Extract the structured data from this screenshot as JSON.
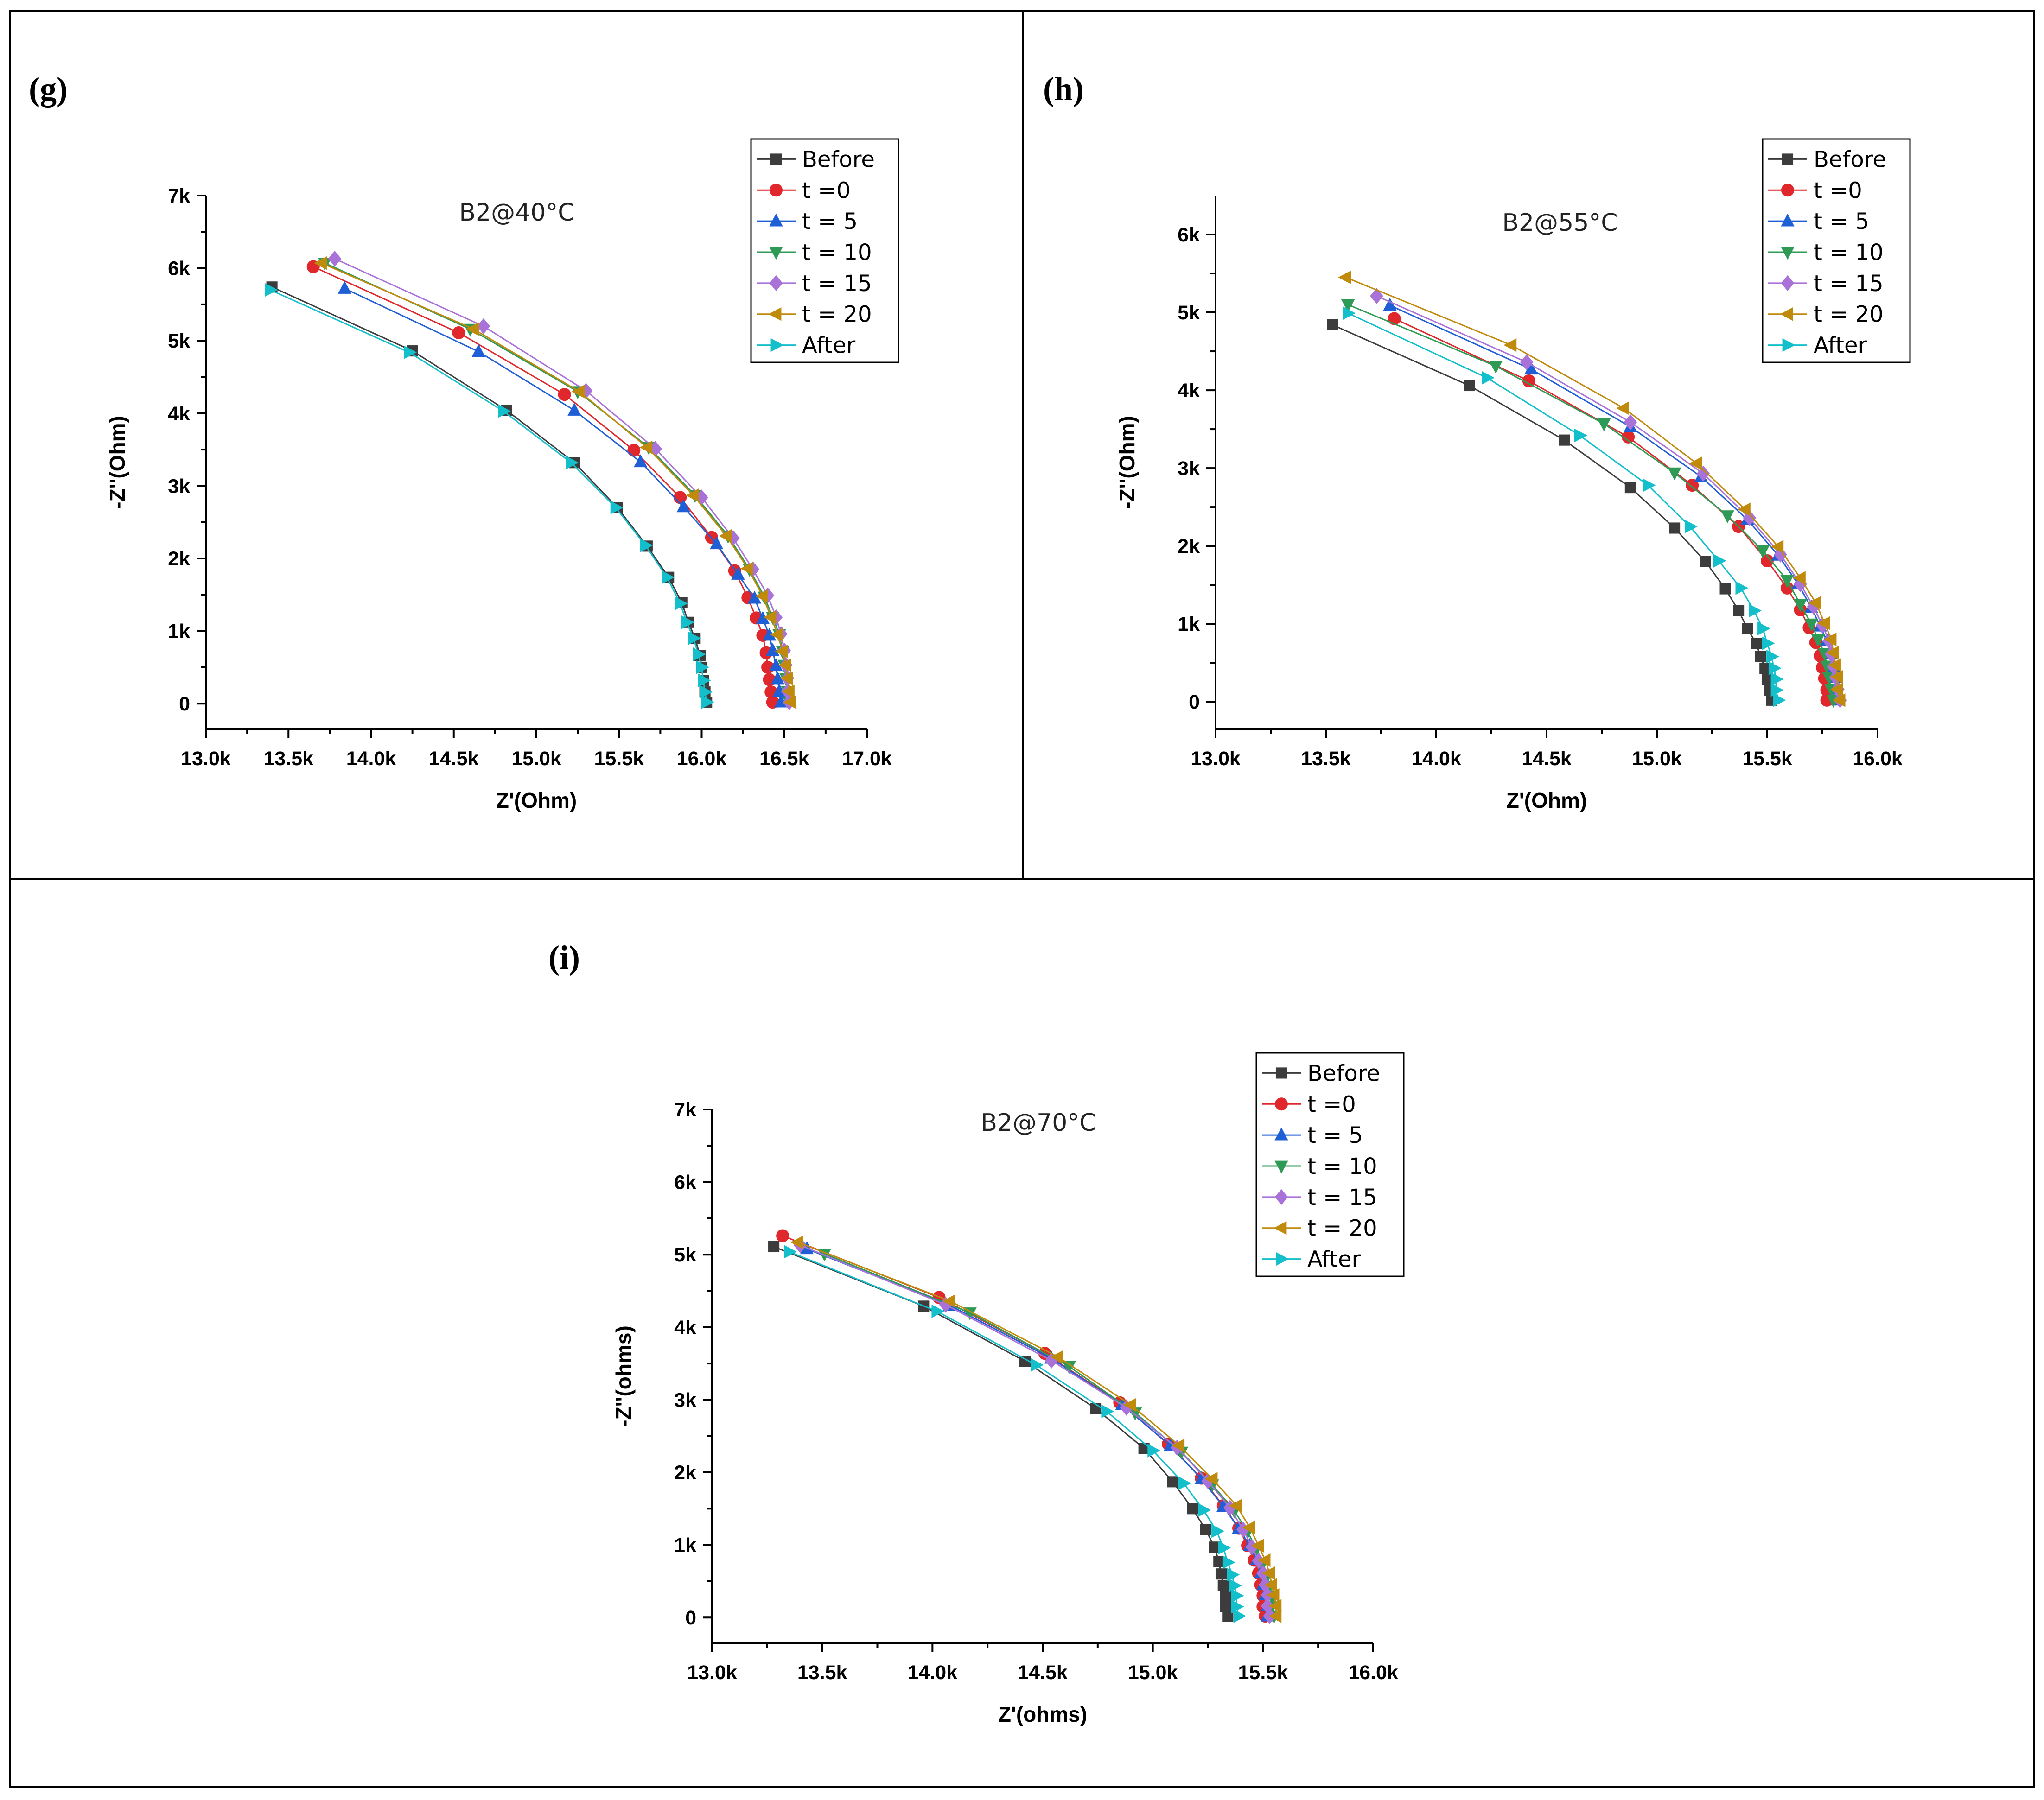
{
  "panels": [
    {
      "label": "(g)",
      "title": "B2@40°C"
    },
    {
      "label": "(h)",
      "title": "B2@55°C"
    },
    {
      "label": "(i)",
      "title": "B2@70°C"
    }
  ],
  "series_style": [
    {
      "name": "Before",
      "color": "#3c3c3c",
      "marker": "square"
    },
    {
      "name": "t =0",
      "color": "#e0282c",
      "marker": "circle"
    },
    {
      "name": "t = 5",
      "color": "#1f5fd6",
      "marker": "triangle-up"
    },
    {
      "name": "t = 10",
      "color": "#2e9a55",
      "marker": "triangle-down"
    },
    {
      "name": "t = 15",
      "color": "#a872d9",
      "marker": "diamond"
    },
    {
      "name": "t = 20",
      "color": "#c08a0c",
      "marker": "triangle-left"
    },
    {
      "name": "After",
      "color": "#14bfcc",
      "marker": "triangle-right"
    }
  ],
  "chart_data": [
    {
      "type": "scatter",
      "title": "B2@40°C",
      "xlabel": "Z'(Ohm)",
      "ylabel": "-Z''(Ohm)",
      "xlim": [
        13000,
        17000
      ],
      "ylim": [
        -350,
        7000
      ],
      "xticks": [
        13000,
        13500,
        14000,
        14500,
        15000,
        15500,
        16000,
        16500,
        17000
      ],
      "xtick_labels": [
        "13.0k",
        "13.5k",
        "14.0k",
        "14.5k",
        "15.0k",
        "15.5k",
        "16.0k",
        "16.5k",
        "17.0k"
      ],
      "yticks": [
        0,
        1000,
        2000,
        3000,
        4000,
        5000,
        6000,
        7000
      ],
      "ytick_labels": [
        "0",
        "1k",
        "2k",
        "3k",
        "4k",
        "5k",
        "6k",
        "7k"
      ],
      "legend": "top-right",
      "series": [
        {
          "name": "Before",
          "x": [
            13400,
            14250,
            14820,
            15230,
            15490,
            15670,
            15800,
            15880,
            15920,
            15960,
            15990,
            16000,
            16010,
            16020,
            16030
          ],
          "y": [
            5740,
            4860,
            4040,
            3320,
            2700,
            2170,
            1740,
            1390,
            1120,
            900,
            660,
            500,
            320,
            160,
            20
          ]
        },
        {
          "name": "t =0",
          "x": [
            13650,
            14530,
            15170,
            15590,
            15870,
            16060,
            16200,
            16280,
            16330,
            16370,
            16390,
            16400,
            16410,
            16420,
            16430
          ],
          "y": [
            6020,
            5110,
            4260,
            3490,
            2840,
            2290,
            1830,
            1460,
            1180,
            940,
            700,
            500,
            330,
            160,
            20
          ]
        },
        {
          "name": "t = 5",
          "x": [
            13840,
            14650,
            15230,
            15630,
            15890,
            16090,
            16220,
            16320,
            16370,
            16410,
            16430,
            16450,
            16460,
            16470,
            16480
          ],
          "y": [
            5720,
            4850,
            4040,
            3330,
            2710,
            2200,
            1780,
            1450,
            1170,
            940,
            730,
            520,
            340,
            170,
            20
          ]
        },
        {
          "name": "t = 10",
          "x": [
            13720,
            14600,
            15250,
            15680,
            15960,
            16160,
            16290,
            16380,
            16430,
            16470,
            16490,
            16500,
            16510,
            16520,
            16530
          ],
          "y": [
            6070,
            5160,
            4300,
            3530,
            2870,
            2310,
            1850,
            1470,
            1190,
            950,
            720,
            530,
            350,
            170,
            20
          ]
        },
        {
          "name": "t = 15",
          "x": [
            13780,
            14680,
            15300,
            15720,
            16000,
            16190,
            16310,
            16400,
            16450,
            16480,
            16500,
            16510,
            16520,
            16520,
            16530
          ],
          "y": [
            6130,
            5200,
            4310,
            3510,
            2840,
            2280,
            1850,
            1490,
            1190,
            960,
            730,
            530,
            350,
            170,
            20
          ]
        },
        {
          "name": "t = 20",
          "x": [
            13700,
            14620,
            15260,
            15670,
            15950,
            16150,
            16280,
            16370,
            16420,
            16460,
            16490,
            16510,
            16520,
            16530,
            16540
          ],
          "y": [
            6070,
            5160,
            4300,
            3530,
            2870,
            2310,
            1860,
            1480,
            1190,
            950,
            720,
            530,
            350,
            170,
            20
          ]
        },
        {
          "name": "After",
          "x": [
            13390,
            14230,
            14800,
            15210,
            15480,
            15660,
            15790,
            15870,
            15910,
            15950,
            15980,
            16000,
            16010,
            16020,
            16030
          ],
          "y": [
            5700,
            4840,
            4030,
            3320,
            2700,
            2180,
            1740,
            1380,
            1120,
            900,
            680,
            500,
            320,
            160,
            20
          ]
        }
      ]
    },
    {
      "type": "scatter",
      "title": "B2@55°C",
      "xlabel": "Z'(Ohm)",
      "ylabel": "-Z''(Ohm)",
      "xlim": [
        13000,
        16000
      ],
      "ylim": [
        -350,
        6500
      ],
      "xticks": [
        13000,
        13500,
        14000,
        14500,
        15000,
        15500,
        16000
      ],
      "xtick_labels": [
        "13.0k",
        "13.5k",
        "14.0k",
        "14.5k",
        "15.0k",
        "15.5k",
        "16.0k"
      ],
      "yticks": [
        0,
        1000,
        2000,
        3000,
        4000,
        5000,
        6000
      ],
      "ytick_labels": [
        "0",
        "1k",
        "2k",
        "3k",
        "4k",
        "5k",
        "6k"
      ],
      "legend": "top-right",
      "series": [
        {
          "name": "Before",
          "x": [
            13530,
            14150,
            14580,
            14880,
            15080,
            15220,
            15310,
            15370,
            15410,
            15450,
            15470,
            15490,
            15500,
            15510,
            15520
          ],
          "y": [
            4840,
            4060,
            3360,
            2750,
            2230,
            1800,
            1450,
            1170,
            940,
            750,
            580,
            430,
            290,
            150,
            20
          ]
        },
        {
          "name": "t =0",
          "x": [
            13810,
            14420,
            14870,
            15160,
            15370,
            15500,
            15590,
            15650,
            15690,
            15720,
            15740,
            15750,
            15760,
            15770,
            15770
          ],
          "y": [
            4920,
            4120,
            3400,
            2780,
            2250,
            1810,
            1460,
            1180,
            950,
            760,
            590,
            440,
            300,
            150,
            20
          ]
        },
        {
          "name": "t = 5",
          "x": [
            13790,
            14430,
            14880,
            15200,
            15410,
            15550,
            15640,
            15700,
            15740,
            15770,
            15790,
            15800,
            15810,
            15810,
            15820
          ],
          "y": [
            5090,
            4270,
            3530,
            2890,
            2340,
            1880,
            1510,
            1210,
            970,
            780,
            610,
            450,
            310,
            160,
            20
          ]
        },
        {
          "name": "t = 10",
          "x": [
            13600,
            14270,
            14760,
            15080,
            15320,
            15480,
            15590,
            15650,
            15700,
            15730,
            15760,
            15770,
            15780,
            15790,
            15800
          ],
          "y": [
            5100,
            4310,
            3570,
            2940,
            2390,
            1940,
            1560,
            1250,
            1000,
            800,
            620,
            460,
            310,
            160,
            20
          ]
        },
        {
          "name": "t = 15",
          "x": [
            13730,
            14410,
            14880,
            15210,
            15420,
            15560,
            15650,
            15710,
            15750,
            15780,
            15790,
            15800,
            15810,
            15820,
            15830
          ],
          "y": [
            5210,
            4360,
            3590,
            2930,
            2360,
            1890,
            1510,
            1220,
            980,
            780,
            610,
            450,
            310,
            160,
            20
          ]
        },
        {
          "name": "t = 20",
          "x": [
            13590,
            14340,
            14850,
            15180,
            15400,
            15550,
            15650,
            15720,
            15760,
            15790,
            15800,
            15810,
            15820,
            15820,
            15830
          ],
          "y": [
            5450,
            4580,
            3770,
            3060,
            2470,
            1990,
            1590,
            1270,
            1010,
            800,
            630,
            470,
            320,
            160,
            20
          ]
        },
        {
          "name": "After",
          "x": [
            13600,
            14230,
            14650,
            14960,
            15150,
            15280,
            15380,
            15440,
            15480,
            15500,
            15520,
            15530,
            15540,
            15540,
            15550
          ],
          "y": [
            4990,
            4160,
            3420,
            2780,
            2250,
            1810,
            1460,
            1170,
            940,
            750,
            580,
            430,
            290,
            150,
            20
          ]
        }
      ]
    },
    {
      "type": "scatter",
      "title": "B2@70°C",
      "xlabel": "Z'(ohms)",
      "ylabel": "-Z''(ohms)",
      "xlim": [
        13000,
        16000
      ],
      "ylim": [
        -350,
        7000
      ],
      "xticks": [
        13000,
        13500,
        14000,
        14500,
        15000,
        15500,
        16000
      ],
      "xtick_labels": [
        "13.0k",
        "13.5k",
        "14.0k",
        "14.5k",
        "15.0k",
        "15.5k",
        "16.0k"
      ],
      "yticks": [
        0,
        1000,
        2000,
        3000,
        4000,
        5000,
        6000,
        7000
      ],
      "ytick_labels": [
        "0",
        "1k",
        "2k",
        "3k",
        "4k",
        "5k",
        "6k",
        "7k"
      ],
      "legend": "top-right",
      "series": [
        {
          "name": "Before",
          "x": [
            13280,
            13960,
            14420,
            14740,
            14960,
            15090,
            15180,
            15240,
            15280,
            15300,
            15310,
            15320,
            15330,
            15330,
            15340
          ],
          "y": [
            5110,
            4290,
            3530,
            2880,
            2330,
            1870,
            1500,
            1210,
            970,
            770,
            600,
            440,
            300,
            150,
            20
          ]
        },
        {
          "name": "t =0",
          "x": [
            13320,
            14030,
            14510,
            14850,
            15070,
            15220,
            15320,
            15390,
            15430,
            15460,
            15480,
            15490,
            15500,
            15500,
            15510
          ],
          "y": [
            5260,
            4410,
            3640,
            2960,
            2390,
            1920,
            1540,
            1230,
            990,
            790,
            610,
            450,
            300,
            150,
            20
          ]
        },
        {
          "name": "t = 5",
          "x": [
            13430,
            14080,
            14540,
            14860,
            15080,
            15220,
            15320,
            15390,
            15440,
            15470,
            15490,
            15500,
            15510,
            15520,
            15520
          ],
          "y": [
            5080,
            4300,
            3570,
            2930,
            2370,
            1910,
            1530,
            1230,
            990,
            790,
            610,
            450,
            310,
            160,
            20
          ]
        },
        {
          "name": "t = 10",
          "x": [
            13510,
            14170,
            14620,
            14920,
            15130,
            15270,
            15370,
            15430,
            15470,
            15500,
            15520,
            15530,
            15540,
            15540,
            15550
          ],
          "y": [
            5010,
            4200,
            3460,
            2820,
            2280,
            1830,
            1470,
            1180,
            950,
            750,
            580,
            430,
            290,
            150,
            20
          ]
        },
        {
          "name": "t = 15",
          "x": [
            13400,
            14060,
            14540,
            14880,
            15110,
            15250,
            15350,
            15410,
            15450,
            15480,
            15500,
            15510,
            15520,
            15520,
            15530
          ],
          "y": [
            5130,
            4310,
            3540,
            2890,
            2340,
            1880,
            1510,
            1210,
            970,
            780,
            610,
            450,
            310,
            160,
            20
          ]
        },
        {
          "name": "t = 20",
          "x": [
            13390,
            14080,
            14570,
            14900,
            15120,
            15270,
            15380,
            15440,
            15480,
            15510,
            15530,
            15540,
            15550,
            15560,
            15560
          ],
          "y": [
            5170,
            4360,
            3590,
            2930,
            2370,
            1910,
            1540,
            1240,
            990,
            790,
            610,
            450,
            310,
            160,
            20
          ]
        },
        {
          "name": "After",
          "x": [
            13350,
            14020,
            14470,
            14790,
            15000,
            15140,
            15230,
            15290,
            15320,
            15340,
            15360,
            15370,
            15380,
            15380,
            15390
          ],
          "y": [
            5040,
            4220,
            3480,
            2840,
            2300,
            1850,
            1480,
            1190,
            960,
            760,
            590,
            440,
            300,
            150,
            20
          ]
        }
      ]
    }
  ]
}
